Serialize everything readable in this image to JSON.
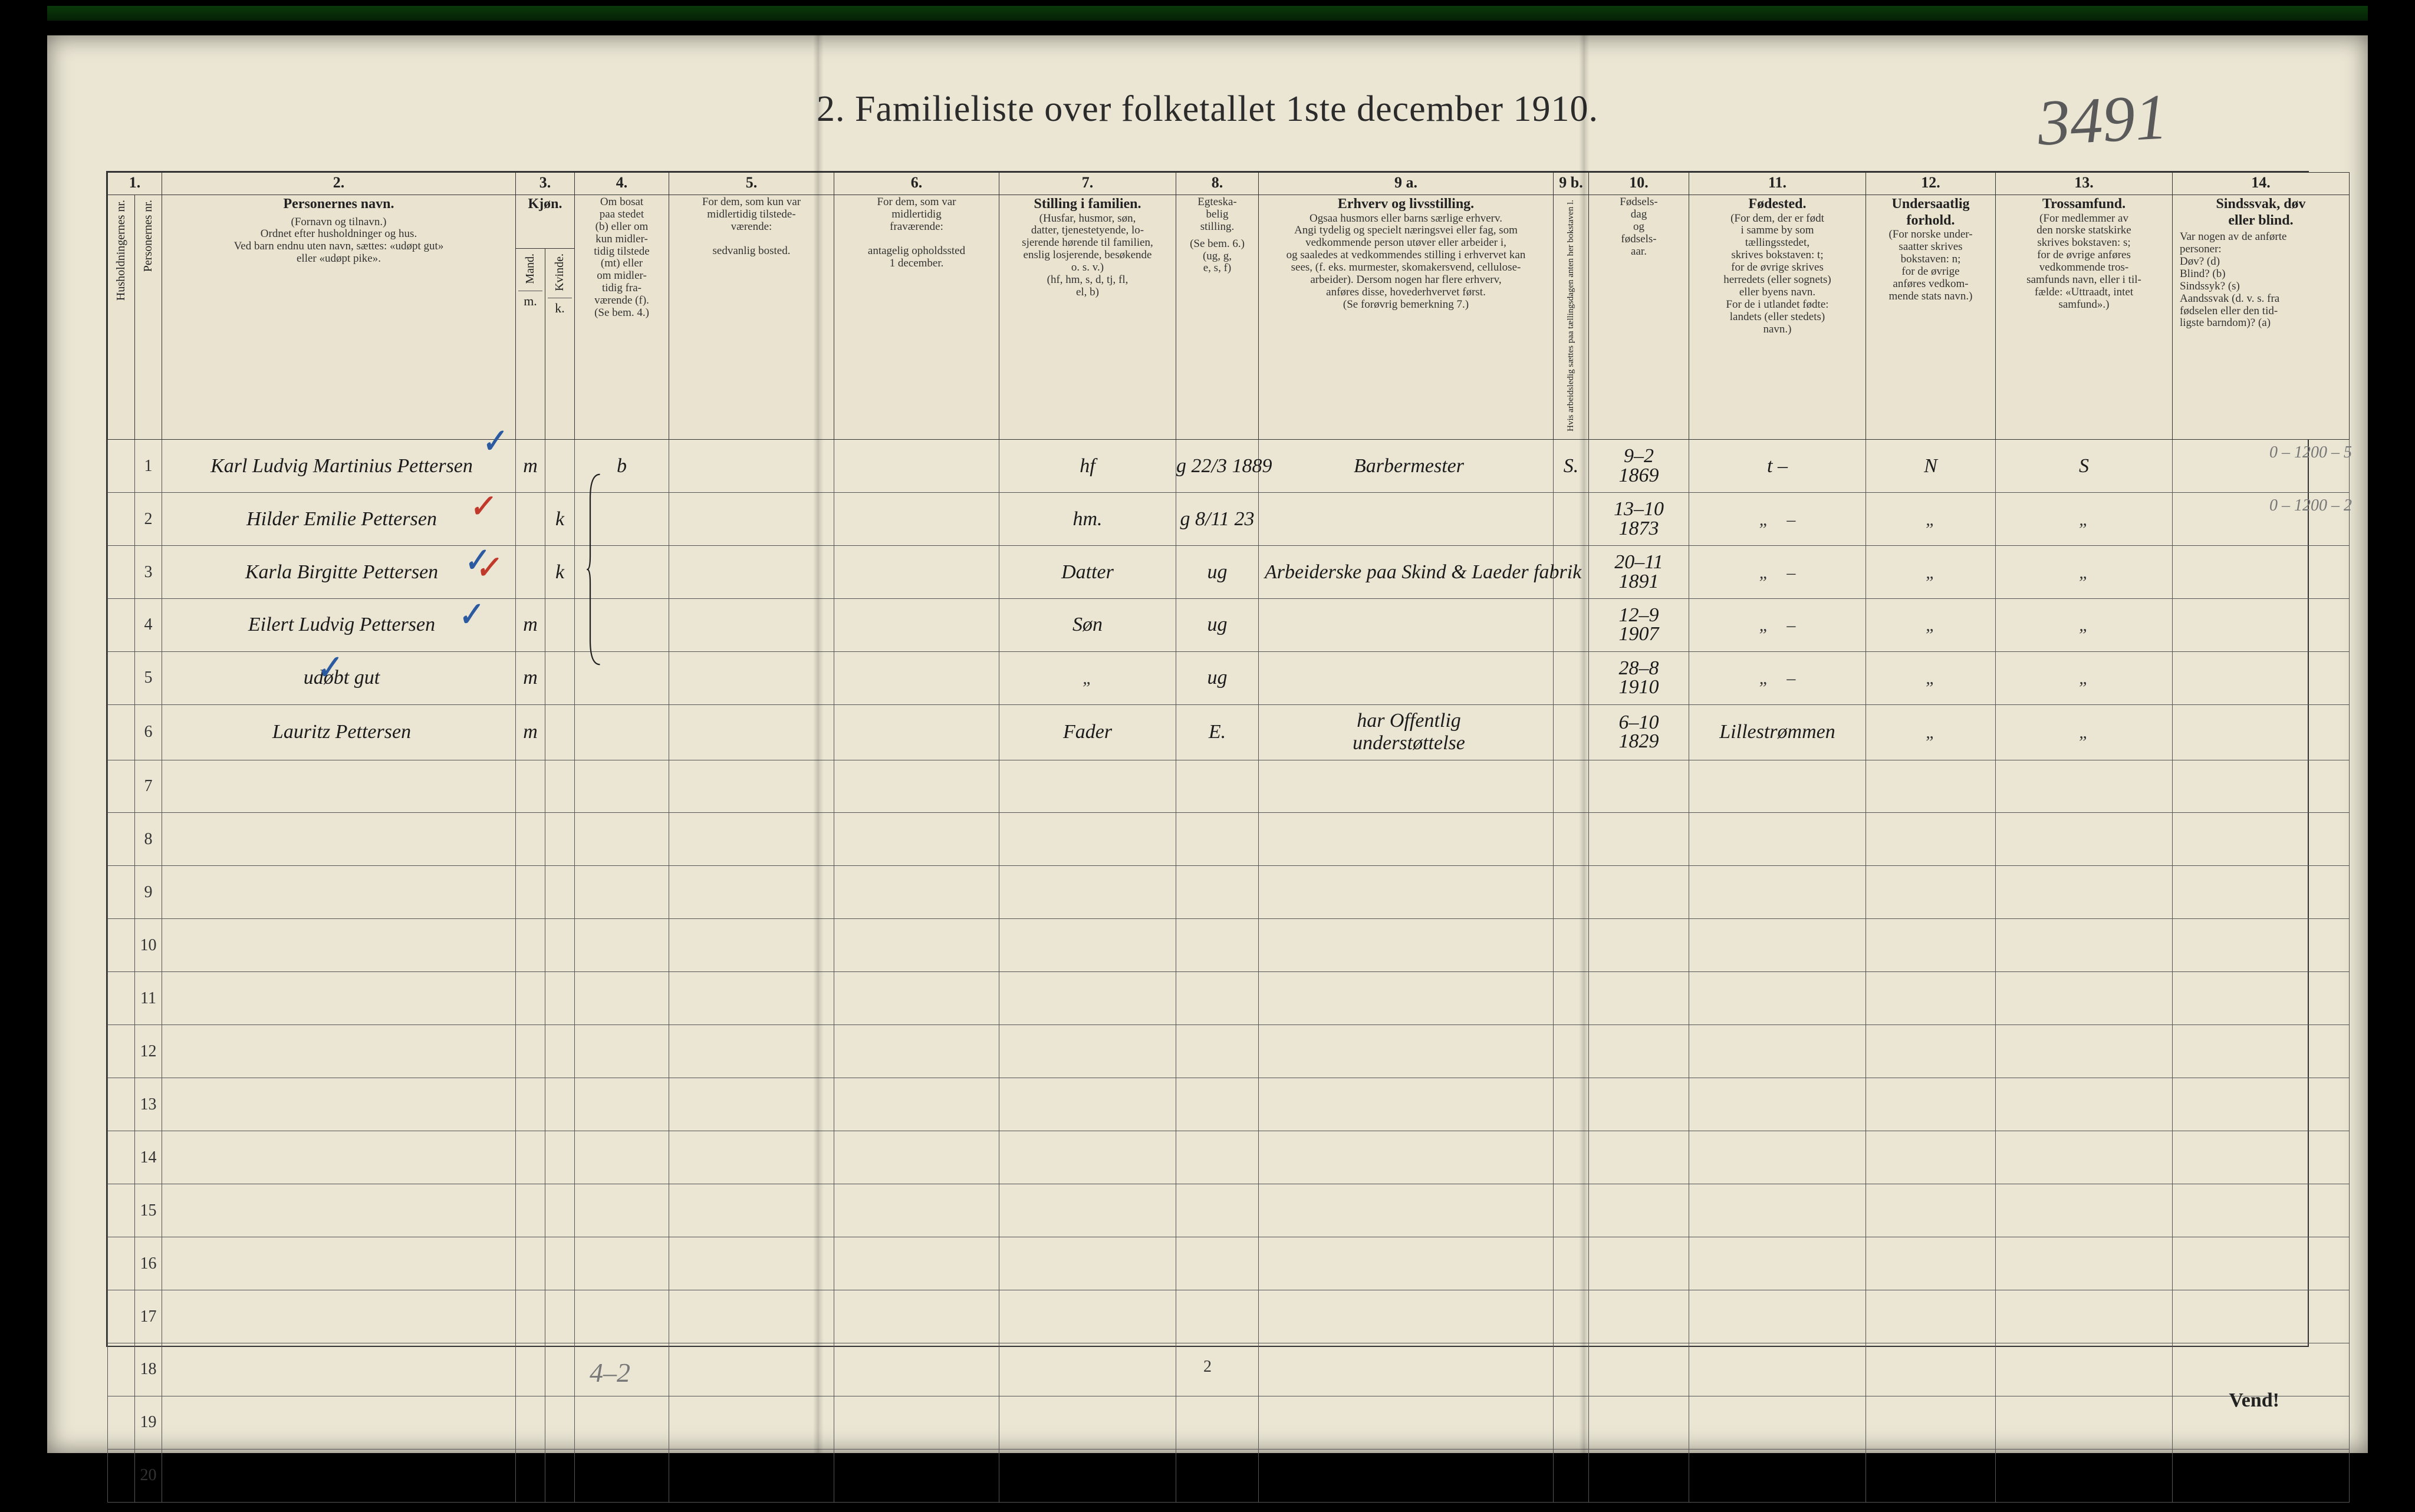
{
  "page": {
    "title": "2.  Familieliste over folketallet 1ste december 1910.",
    "top_right_handwritten": "3491",
    "page_number_bottom": "2",
    "vend_label": "Vend!",
    "bottom_pencil_note": "4–2"
  },
  "headers": {
    "col_numbers": [
      "1.",
      "2.",
      "3.",
      "4.",
      "5.",
      "6.",
      "7.",
      "8.",
      "9 a.",
      "9 b.",
      "10.",
      "11.",
      "12.",
      "13.",
      "14."
    ],
    "c1a_rot": "Husholdningernes nr.",
    "c1b_rot": "Personernes nr.",
    "c2_head": "Personernes navn.",
    "c2_sub": "(Fornavn og tilnavn.)\nOrdnet efter husholdninger og hus.\nVed barn endnu uten navn, sættes: «udøpt gut»\neller «udøpt pike».",
    "c3_head": "Kjøn.",
    "c3_m": "Mand.",
    "c3_k": "Kvinde.",
    "c3_mk": "m.  k.",
    "c4_head": "Om bosat\npaa stedet\n(b) eller om\nkun midler-\ntidig tilstede\n(mt) eller\nom midler-\ntidig fra-\nværende (f).\n(Se bem. 4.)",
    "c5_head": "For dem, som kun var\nmidlertidig tilstede-\nværende:",
    "c5_sub": "sedvanlig bosted.",
    "c6_head": "For dem, som var\nmidlertidig\nfraværende:",
    "c6_sub": "antagelig opholdssted\n1 december.",
    "c7_head": "Stilling i familien.",
    "c7_sub": "(Husfar, husmor, søn,\ndatter, tjenestetyende, lo-\nsjerende hørende til familien,\nenslig losjerende, besøkende\no. s. v.)\n(hf, hm, s, d, tj, fl,\nel, b)",
    "c8_head": "Egteska-\nbelig\nstilling.",
    "c8_sub": "(Se bem. 6.)\n(ug, g,\ne, s, f)",
    "c9_head": "Erhverv og livsstilling.",
    "c9_sub": "Ogsaa husmors eller barns særlige erhverv.\nAngi tydelig og specielt næringsvei eller fag, som\nvedkommende person utøver eller arbeider i,\nog saaledes at vedkommendes stilling i erhvervet kan\nsees, (f. eks. murmester, skomakersvend, cellulose-\narbeider). Dersom nogen har flere erhverv,\nanføres disse, hovederhvervet først.\n(Se forøvrig bemerkning 7.)",
    "c9b_rot": "Hvis arbeidsledig sættes\npaa tællingsdagen anten her bokstaven l.",
    "c10_head": "Fødsels-\ndag\nog\nfødsels-\naar.",
    "c11_head": "Fødested.",
    "c11_sub": "(For dem, der er født\ni samme by som\ntællingsstedet,\nskrives bokstaven: t;\nfor de øvrige skrives\nherredets (eller sognets)\neller byens navn.\nFor de i utlandet fødte:\nlandets (eller stedets)\nnavn.)",
    "c12_head": "Undersaatlig\nforhold.",
    "c12_sub": "(For norske under-\nsaatter skrives\nbokstaven: n;\nfor de øvrige\nanføres vedkom-\nmende stats navn.)",
    "c13_head": "Trossamfund.",
    "c13_sub": "(For medlemmer av\nden norske statskirke\nskrives bokstaven: s;\nfor de øvrige anføres\nvedkommende tros-\nsamfunds navn, eller i til-\nfælde: «Uttraadt, intet\nsamfund».)",
    "c14_head": "Sindssvak, døv\neller blind.",
    "c14_sub": "Var nogen av de anførte\npersoner:\nDøv?          (d)\nBlind?        (b)\nSindssyk?  (s)\nAandssvak (d. v. s. fra\nfødselen eller den tid-\nligste barndom)?  (a)"
  },
  "rows": [
    {
      "num": "1",
      "name": "Karl Ludvig Martinius Pettersen",
      "sex": "m",
      "bosat": "b",
      "col5": "",
      "col6": "",
      "familie": "hf",
      "egte": "g 22/3 1889",
      "erhverv": "Barbermester",
      "c9b": "S.",
      "dob": "9–2\n1869",
      "fodested": "t      –",
      "under": "N",
      "tros": "S",
      "c14": "",
      "margin_note": "0 – 1200 – 5"
    },
    {
      "num": "2",
      "name": "Hilder Emilie Pettersen",
      "sex": "k",
      "bosat": "",
      "familie": "hm.",
      "egte": "g 8/11 23",
      "erhverv": "",
      "dob": "13–10\n1873",
      "fodested": "\"",
      "under": "\"",
      "tros": "\"",
      "margin_note": "0 – 1200 – 2"
    },
    {
      "num": "3",
      "name": "Karla Birgitte Pettersen",
      "sex": "k.",
      "bosat": "",
      "familie": "Datter",
      "egte": "ug",
      "erhverv": "Arbeiderske paa Skind & Laeder fabrik",
      "dob": "20–11\n1891",
      "fodested": "\"",
      "under": "\"",
      "tros": "\""
    },
    {
      "num": "4",
      "name": "Eilert Ludvig Pettersen",
      "sex": "m",
      "bosat": "",
      "familie": "Søn",
      "egte": "ug",
      "erhverv": "",
      "dob": "12–9\n1907",
      "fodested": "\"",
      "under": "\"",
      "tros": "\""
    },
    {
      "num": "5",
      "name": "udøbt   gut",
      "sex": "m",
      "bosat": "",
      "familie": "\"",
      "egte": "ug",
      "erhverv": "",
      "dob": "28–8\n1910",
      "fodested": "\"",
      "under": "\"",
      "tros": "\""
    },
    {
      "num": "6",
      "name": "Lauritz   Pettersen",
      "sex": "m",
      "bosat": "",
      "familie": "Fader",
      "egte": "E.",
      "erhverv": "har Offentlig\nunderstøttelse",
      "dob": "6–10\n1829",
      "fodested": "Lillestrømmen",
      "under": "\"",
      "tros": "\""
    },
    {
      "num": "7"
    },
    {
      "num": "8"
    },
    {
      "num": "9"
    },
    {
      "num": "10"
    },
    {
      "num": "11"
    },
    {
      "num": "12"
    },
    {
      "num": "13"
    },
    {
      "num": "14"
    },
    {
      "num": "15"
    },
    {
      "num": "16"
    },
    {
      "num": "17"
    },
    {
      "num": "18"
    },
    {
      "num": "19"
    },
    {
      "num": "20"
    }
  ],
  "colors": {
    "paper": "#ebe6d4",
    "ink": "#222222",
    "pencil": "#7a7a7a",
    "red": "#c0392b",
    "blue": "#2b5aa0",
    "border": "#444444"
  }
}
